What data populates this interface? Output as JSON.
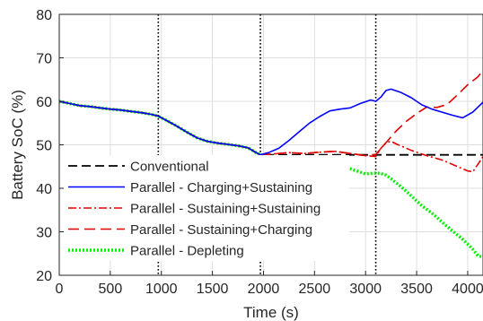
{
  "chart_data": {
    "type": "line",
    "title": "",
    "xlabel": "Time (s)",
    "ylabel": "Battery SoC (%)",
    "xlim": [
      0,
      4150
    ],
    "ylim": [
      20,
      80
    ],
    "xticks": [
      0,
      500,
      1000,
      1500,
      2000,
      2500,
      3000,
      3500,
      4000
    ],
    "yticks": [
      20,
      30,
      40,
      50,
      60,
      70,
      80
    ],
    "grid": true,
    "legend_position": "bottom-left",
    "vlines": [
      970,
      1970,
      3100
    ],
    "series": [
      {
        "name": "Conventional",
        "color": "#000000",
        "style": "dashed",
        "x": [
          0,
          100,
          200,
          300,
          400,
          500,
          600,
          700,
          800,
          900,
          970,
          1050,
          1150,
          1250,
          1350,
          1450,
          1550,
          1650,
          1750,
          1850,
          1920,
          1970,
          4150
        ],
        "y": [
          60,
          59.5,
          59,
          58.8,
          58.5,
          58.2,
          58,
          57.7,
          57.4,
          57,
          56.6,
          55.6,
          54.3,
          52.9,
          51.6,
          50.8,
          50.4,
          50.1,
          49.8,
          49.3,
          48.3,
          47.7,
          47.7
        ]
      },
      {
        "name": "Parallel - Charging+Sustaining",
        "color": "#0000ff",
        "style": "solid",
        "x": [
          0,
          100,
          200,
          300,
          400,
          500,
          600,
          700,
          800,
          900,
          970,
          1050,
          1150,
          1250,
          1350,
          1450,
          1550,
          1650,
          1750,
          1850,
          1920,
          1970,
          2050,
          2150,
          2250,
          2350,
          2450,
          2550,
          2650,
          2750,
          2850,
          2950,
          3050,
          3100,
          3150,
          3200,
          3250,
          3350,
          3450,
          3550,
          3650,
          3750,
          3850,
          3950,
          4050,
          4150
        ],
        "y": [
          60,
          59.5,
          59,
          58.8,
          58.5,
          58.2,
          58,
          57.7,
          57.4,
          57,
          56.6,
          55.6,
          54.3,
          52.9,
          51.6,
          50.8,
          50.4,
          50.1,
          49.8,
          49.3,
          48.3,
          47.7,
          48.2,
          49.2,
          51,
          53,
          55,
          56.5,
          57.8,
          58.2,
          58.5,
          59.5,
          60.3,
          60,
          61,
          62.5,
          62.8,
          62,
          60.8,
          59.2,
          58.2,
          57.5,
          56.8,
          56.2,
          57.5,
          59.8
        ]
      },
      {
        "name": "Parallel - Sustaining+Sustaining",
        "color": "#e00000",
        "style": "dashdot",
        "x": [
          0,
          100,
          200,
          300,
          400,
          500,
          600,
          700,
          800,
          900,
          970,
          1050,
          1150,
          1250,
          1350,
          1450,
          1550,
          1650,
          1750,
          1850,
          1920,
          1970,
          2100,
          2250,
          2400,
          2550,
          2700,
          2850,
          3000,
          3100,
          3150,
          3200,
          3250,
          3300,
          3450,
          3600,
          3750,
          3850,
          3950,
          4000,
          4050,
          4100,
          4150
        ],
        "y": [
          60,
          59.5,
          59,
          58.8,
          58.5,
          58.2,
          58,
          57.7,
          57.4,
          57,
          56.6,
          55.6,
          54.3,
          52.9,
          51.6,
          50.8,
          50.4,
          50.1,
          49.8,
          49.3,
          48.3,
          47.7,
          47.9,
          48.2,
          48,
          48.3,
          48.5,
          48,
          47.5,
          47.3,
          49.2,
          50.5,
          50.8,
          50.2,
          48.7,
          47.5,
          46.5,
          45.5,
          44.5,
          44,
          43.8,
          45.5,
          47.3
        ]
      },
      {
        "name": "Parallel - Sustaining+Charging",
        "color": "#e00000",
        "style": "longdash",
        "x": [
          0,
          100,
          200,
          300,
          400,
          500,
          600,
          700,
          800,
          900,
          970,
          1050,
          1150,
          1250,
          1350,
          1450,
          1550,
          1650,
          1750,
          1850,
          1920,
          1970,
          2100,
          2250,
          2400,
          2550,
          2700,
          2850,
          3000,
          3100,
          3200,
          3300,
          3400,
          3500,
          3600,
          3700,
          3800,
          3900,
          4000,
          4100,
          4150
        ],
        "y": [
          60,
          59.5,
          59,
          58.8,
          58.5,
          58.2,
          58,
          57.7,
          57.4,
          57,
          56.6,
          55.6,
          54.3,
          52.9,
          51.6,
          50.8,
          50.4,
          50.1,
          49.8,
          49.3,
          48.3,
          47.7,
          47.9,
          48.2,
          48,
          48.3,
          48.5,
          48,
          47.5,
          47.8,
          50.5,
          53.2,
          55.4,
          57.2,
          58.7,
          58.6,
          59.3,
          61.5,
          63.8,
          65.6,
          67.2
        ]
      },
      {
        "name": "Parallel - Depleting",
        "color": "#00ee00",
        "style": "dotted",
        "x": [
          0,
          100,
          200,
          300,
          400,
          500,
          600,
          700,
          800,
          900,
          970,
          1050,
          1150,
          1250,
          1350,
          1450,
          1550,
          1650,
          1750,
          1850,
          1920,
          1970,
          2100,
          2250,
          2400,
          2550,
          2700,
          2850,
          3000,
          3100,
          3150,
          3200,
          3250,
          3350,
          3450,
          3550,
          3650,
          3750,
          3850,
          3950,
          4050,
          4100,
          4150
        ],
        "y": [
          60,
          59.5,
          59,
          58.8,
          58.5,
          58.2,
          58,
          57.7,
          57.4,
          57,
          56.6,
          55.6,
          54.3,
          52.9,
          51.6,
          50.8,
          50.4,
          50.1,
          49.8,
          49.3,
          48.3,
          47.7,
          47.3,
          46.6,
          46.2,
          45.6,
          45.2,
          44.5,
          43.3,
          43.5,
          43.4,
          43,
          42.2,
          40.3,
          38.2,
          36,
          34.3,
          32.2,
          30.2,
          28.3,
          26,
          24.5,
          24.2
        ]
      }
    ]
  }
}
